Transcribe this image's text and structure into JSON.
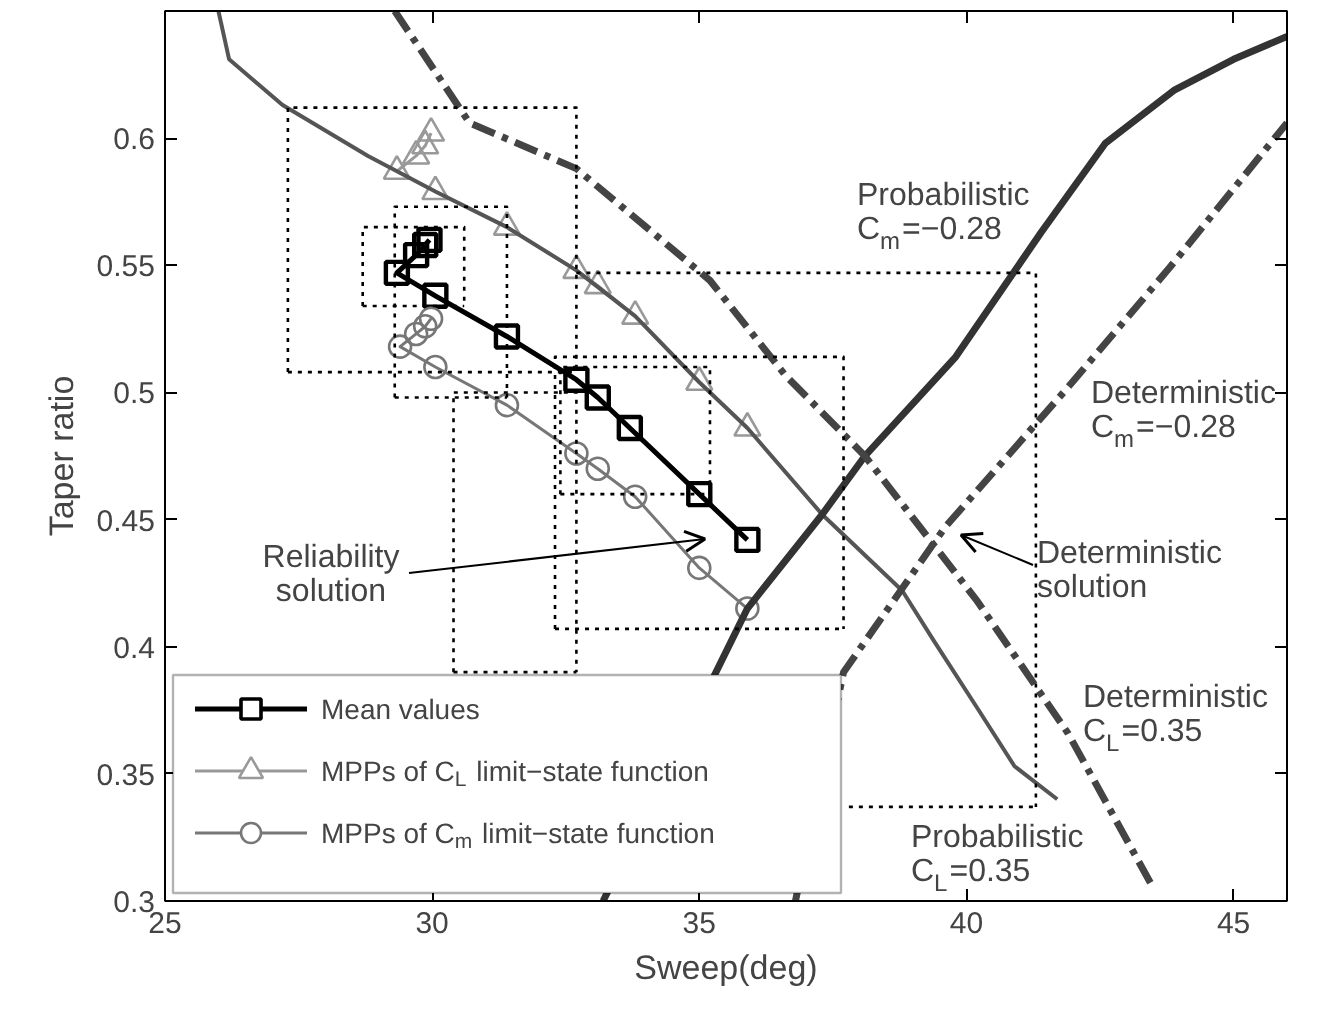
{
  "chart_data": {
    "type": "line",
    "xlabel": "Sweep(deg)",
    "ylabel": "Taper ratio",
    "xlim": [
      25,
      46
    ],
    "ylim": [
      0.3,
      0.65
    ],
    "xticks": [
      25,
      30,
      35,
      40,
      45
    ],
    "yticks": [
      0.3,
      0.35,
      0.4,
      0.45,
      0.5,
      0.55,
      0.6
    ],
    "grid": false,
    "legend": "bottom left",
    "series": [
      {
        "name": "Mean values",
        "color": "#000000",
        "marker": "square",
        "line_style": "solid",
        "x": [
          29.95,
          29.87,
          29.7,
          29.34,
          30.06,
          31.4,
          32.7,
          33.1,
          33.7,
          35.0,
          35.9
        ],
        "values": [
          0.56,
          0.558,
          0.554,
          0.547,
          0.538,
          0.522,
          0.505,
          0.498,
          0.486,
          0.46,
          0.442
        ]
      },
      {
        "name": "MPPs of C$_{L}$ limit−state function",
        "color": "#999999",
        "marker": "triangle",
        "line_style": "solid",
        "x": [
          29.98,
          29.87,
          29.7,
          29.34,
          30.06,
          31.4,
          32.7,
          33.1,
          33.8,
          35.0,
          35.9
        ],
        "values": [
          0.602,
          0.597,
          0.593,
          0.587,
          0.579,
          0.565,
          0.548,
          0.542,
          0.53,
          0.504,
          0.486
        ]
      },
      {
        "name": "MPPs of C$_{m}$ limit−state function",
        "color": "#777777",
        "marker": "circle",
        "line_style": "solid",
        "x": [
          29.98,
          29.87,
          29.7,
          29.4,
          30.06,
          31.4,
          32.7,
          33.1,
          33.8,
          35.0,
          35.9
        ],
        "values": [
          0.529,
          0.526,
          0.523,
          0.518,
          0.51,
          0.495,
          0.476,
          0.47,
          0.459,
          0.431,
          0.415
        ]
      },
      {
        "color": "#555555",
        "marker": "none",
        "line_style": "solid",
        "x": [
          26.0,
          26.2,
          27.2,
          28.8,
          30.06,
          31.4,
          32.7,
          33.8,
          35.0,
          35.9,
          37.3,
          38.8,
          39.4,
          40.2,
          40.9,
          41.7
        ],
        "values": [
          0.65,
          0.631,
          0.613,
          0.593,
          0.579,
          0.565,
          0.548,
          0.53,
          0.504,
          0.486,
          0.452,
          0.422,
          0.402,
          0.376,
          0.353,
          0.34
        ]
      },
      {
        "color": "#333333",
        "marker": "none",
        "line_style": "solid",
        "x": [
          33.2,
          35.9,
          37.3,
          38.1,
          39.8,
          41.4,
          42.6,
          43.9,
          45.0,
          46.0
        ],
        "values": [
          0.3,
          0.415,
          0.452,
          0.475,
          0.514,
          0.563,
          0.598,
          0.619,
          0.631,
          0.64
        ]
      },
      {
        "color": "#444444",
        "marker": "none",
        "line_style": "dashed",
        "x": [
          29.3,
          30.7,
          32.7,
          35.2,
          36.6,
          38.1,
          40.2,
          41.9,
          43.5
        ],
        "values": [
          0.65,
          0.606,
          0.588,
          0.544,
          0.507,
          0.475,
          0.418,
          0.366,
          0.305
        ]
      },
      {
        "color": "#444444",
        "marker": "none",
        "line_style": "dashed",
        "x": [
          36.8,
          37.7,
          39.6,
          41.9,
          43.8,
          46.0
        ],
        "values": [
          0.3,
          0.39,
          0.447,
          0.502,
          0.549,
          0.606
        ]
      },
      {
        "color": "#000000",
        "marker": "none",
        "line_style": "dotted",
        "x": [
          27.3,
          27.3,
          32.7,
          32.7
        ],
        "values": [
          0.508,
          0.612,
          0.612,
          0.508
        ]
      },
      {
        "color": "#000000",
        "marker": "none",
        "line_style": "dotted",
        "x": [
          27.3,
          32.7
        ],
        "values": [
          0.508,
          0.508
        ]
      },
      {
        "color": "#000000",
        "marker": "none",
        "line_style": "dotted",
        "x": [
          28.7,
          28.7,
          30.6,
          30.6
        ],
        "values": [
          0.534,
          0.565,
          0.565,
          0.534
        ]
      },
      {
        "color": "#000000",
        "marker": "none",
        "line_style": "dotted",
        "x": [
          28.7,
          30.6
        ],
        "values": [
          0.534,
          0.534
        ]
      },
      {
        "color": "#000000",
        "marker": "none",
        "line_style": "dotted",
        "x": [
          29.3,
          29.3,
          31.4,
          31.4
        ],
        "values": [
          0.498,
          0.573,
          0.573,
          0.498
        ]
      },
      {
        "color": "#000000",
        "marker": "none",
        "line_style": "dotted",
        "x": [
          29.3,
          31.4
        ],
        "values": [
          0.498,
          0.498
        ]
      },
      {
        "color": "#000000",
        "marker": "none",
        "line_style": "dotted",
        "x": [
          30.4,
          30.4,
          32.7,
          32.7
        ],
        "values": [
          0.39,
          0.5,
          0.5,
          0.39
        ]
      },
      {
        "color": "#000000",
        "marker": "none",
        "line_style": "dotted",
        "x": [
          30.4,
          32.7
        ],
        "values": [
          0.39,
          0.39
        ]
      },
      {
        "color": "#000000",
        "marker": "none",
        "line_style": "dotted",
        "x": [
          32.3,
          32.3,
          37.7,
          37.7
        ],
        "values": [
          0.407,
          0.514,
          0.514,
          0.407
        ]
      },
      {
        "color": "#000000",
        "marker": "none",
        "line_style": "dotted",
        "x": [
          32.3,
          37.7
        ],
        "values": [
          0.407,
          0.407
        ]
      },
      {
        "color": "#000000",
        "marker": "none",
        "line_style": "dotted",
        "x": [
          32.7,
          41.3,
          41.3
        ],
        "values": [
          0.547,
          0.547,
          0.337
        ]
      },
      {
        "color": "#000000",
        "marker": "none",
        "line_style": "dotted",
        "x": [
          37.8,
          41.3
        ],
        "values": [
          0.337,
          0.337
        ]
      },
      {
        "color": "#000000",
        "marker": "none",
        "line_style": "dotted",
        "x": [
          32.4,
          32.4,
          35.2,
          35.2
        ],
        "values": [
          0.46,
          0.51,
          0.51,
          0.46
        ]
      },
      {
        "color": "#000000",
        "marker": "none",
        "line_style": "dotted",
        "x": [
          32.4,
          35.2
        ],
        "values": [
          0.46,
          0.46
        ]
      }
    ],
    "annotations": [
      "Reliability\nsolution",
      "Deterministic\nsolution",
      "Probabilistic\nC$_{m}$=−0.28",
      "Deterministic\nC$_{m}$=−0.28",
      "Deterministic\nC$_{L}$=0.35",
      "Probabilistic\nC$_{L}$=0.35"
    ]
  }
}
